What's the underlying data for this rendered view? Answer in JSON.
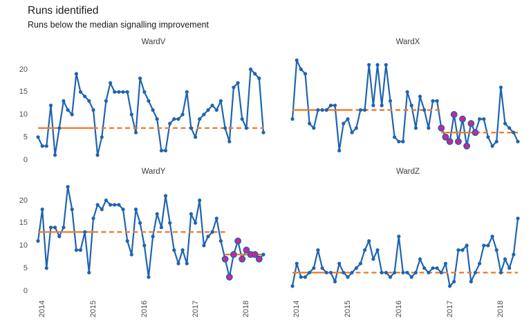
{
  "header": {
    "title": "Runs identified",
    "subtitle": "Runs below the median signalling improvement"
  },
  "colors": {
    "line": "#1E64B0",
    "median": "#ED7D31",
    "highlight": "#D6218E",
    "axis_text": "#4d4d4d",
    "panel_title_text": "#3d3d3d",
    "background": "#ffffff"
  },
  "axes": {
    "y_ticks": [
      0,
      5,
      10,
      15,
      20
    ],
    "ylim": [
      0,
      24
    ],
    "x_ticks": [
      "2014",
      "2015",
      "2016",
      "2017",
      "2018"
    ],
    "x_tick_indices": [
      1,
      13,
      25,
      37,
      49
    ],
    "grid": "off",
    "legend": "none"
  },
  "chart_data": [
    {
      "type": "line",
      "panel": "WardV",
      "values": [
        5,
        3,
        3,
        12,
        1,
        7,
        13,
        11,
        10,
        19,
        15,
        14,
        13,
        11,
        1,
        5,
        13,
        17,
        15,
        15,
        15,
        15,
        10,
        6,
        18,
        15,
        13,
        11,
        9,
        2,
        2,
        8,
        9,
        9,
        10,
        15,
        7,
        5,
        9,
        10,
        11,
        12,
        11,
        13,
        7,
        4,
        16,
        17,
        9,
        7,
        20,
        19,
        18,
        6
      ],
      "medians": [
        {
          "level": 7,
          "solid": [
            0,
            13
          ],
          "dashed": [
            13,
            53
          ]
        }
      ],
      "highlight_indices": []
    },
    {
      "type": "line",
      "panel": "WardX",
      "values": [
        9,
        22,
        20,
        19,
        8,
        7,
        11,
        11,
        11,
        12,
        12,
        2,
        8,
        9,
        6,
        7,
        11,
        11,
        21,
        12,
        21,
        12,
        21,
        13,
        5,
        4,
        4,
        15,
        12,
        7,
        14,
        11,
        7,
        13,
        13,
        7,
        5,
        4,
        10,
        4,
        9,
        3,
        8,
        6,
        9,
        9,
        5,
        3,
        4,
        16,
        8,
        7,
        6,
        4
      ],
      "medians": [
        {
          "level": 11,
          "solid": [
            0,
            13
          ],
          "dashed": [
            13,
            35
          ]
        },
        {
          "level": 6,
          "solid": [
            35,
            43
          ],
          "dashed": [
            43,
            53
          ]
        }
      ],
      "highlight_indices": [
        35,
        36,
        37,
        38,
        39,
        40,
        41,
        42,
        43
      ]
    },
    {
      "type": "line",
      "panel": "WardY",
      "values": [
        11,
        18,
        5,
        14,
        14,
        12,
        14,
        23,
        18,
        9,
        9,
        13,
        4,
        16,
        19,
        18,
        20,
        19,
        19,
        19,
        18,
        11,
        8,
        18,
        15,
        10,
        3,
        12,
        17,
        14,
        21,
        15,
        9,
        6,
        9,
        6,
        17,
        15,
        20,
        10,
        12,
        13,
        16,
        11,
        7,
        3,
        8,
        11,
        7,
        9,
        8,
        8,
        7,
        8
      ],
      "medians": [
        {
          "level": 13,
          "solid": [
            0,
            13
          ],
          "dashed": [
            13,
            44
          ]
        },
        {
          "level": 8,
          "solid": [
            44,
            52
          ],
          "dashed": [
            52,
            53
          ]
        }
      ],
      "highlight_indices": [
        44,
        45,
        46,
        47,
        48,
        49,
        50,
        51,
        52
      ]
    },
    {
      "type": "line",
      "panel": "WardZ",
      "values": [
        1,
        6,
        3,
        3,
        4,
        5,
        9,
        5,
        4,
        4,
        2,
        6,
        4,
        3,
        4,
        5,
        6,
        9,
        11,
        7,
        9,
        4,
        4,
        3,
        4,
        12,
        4,
        4,
        3,
        4,
        7,
        5,
        4,
        5,
        5,
        4,
        6,
        1,
        2,
        9,
        9,
        10,
        2,
        4,
        6,
        10,
        10,
        12,
        9,
        4,
        7,
        5,
        8,
        16
      ],
      "medians": [
        {
          "level": 4,
          "solid": [
            0,
            13
          ],
          "dashed": [
            13,
            53
          ]
        }
      ],
      "highlight_indices": []
    }
  ]
}
